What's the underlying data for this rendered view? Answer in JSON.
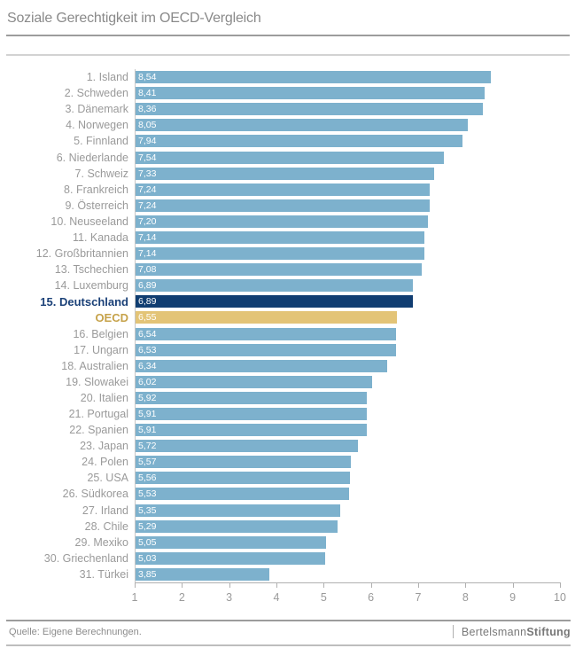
{
  "header": {
    "title": "Soziale Gerechtigkeit im OECD-Vergleich"
  },
  "chart_data": {
    "type": "bar",
    "orientation": "horizontal",
    "title": "Soziale Gerechtigkeit im OECD-Vergleich",
    "xlabel": "",
    "ylabel": "",
    "xlim": [
      1,
      10
    ],
    "x_ticks": [
      1,
      2,
      3,
      4,
      5,
      6,
      7,
      8,
      9,
      10
    ],
    "grid": false,
    "legend": "none",
    "value_labels_inside_bars": true,
    "rows": [
      {
        "label": "1. Island",
        "value": 8.54,
        "display": "8,54",
        "type": "default"
      },
      {
        "label": "2. Schweden",
        "value": 8.41,
        "display": "8,41",
        "type": "default"
      },
      {
        "label": "3. Dänemark",
        "value": 8.36,
        "display": "8,36",
        "type": "default"
      },
      {
        "label": "4. Norwegen",
        "value": 8.05,
        "display": "8,05",
        "type": "default"
      },
      {
        "label": "5. Finnland",
        "value": 7.94,
        "display": "7,94",
        "type": "default"
      },
      {
        "label": "6. Niederlande",
        "value": 7.54,
        "display": "7,54",
        "type": "default"
      },
      {
        "label": "7. Schweiz",
        "value": 7.33,
        "display": "7,33",
        "type": "default"
      },
      {
        "label": "8. Frankreich",
        "value": 7.24,
        "display": "7,24",
        "type": "default"
      },
      {
        "label": "9. Österreich",
        "value": 7.24,
        "display": "7,24",
        "type": "default"
      },
      {
        "label": "10. Neuseeland",
        "value": 7.2,
        "display": "7,20",
        "type": "default"
      },
      {
        "label": "11. Kanada",
        "value": 7.14,
        "display": "7,14",
        "type": "default"
      },
      {
        "label": "12. Großbritannien",
        "value": 7.14,
        "display": "7,14",
        "type": "default"
      },
      {
        "label": "13. Tschechien",
        "value": 7.08,
        "display": "7,08",
        "type": "default"
      },
      {
        "label": "14. Luxemburg",
        "value": 6.89,
        "display": "6,89",
        "type": "default"
      },
      {
        "label": "15. Deutschland",
        "value": 6.89,
        "display": "6,89",
        "type": "highlight-country"
      },
      {
        "label": "OECD",
        "value": 6.55,
        "display": "6,55",
        "type": "highlight-average"
      },
      {
        "label": "16. Belgien",
        "value": 6.54,
        "display": "6,54",
        "type": "default"
      },
      {
        "label": "17. Ungarn",
        "value": 6.53,
        "display": "6,53",
        "type": "default"
      },
      {
        "label": "18. Australien",
        "value": 6.34,
        "display": "6,34",
        "type": "default"
      },
      {
        "label": "19. Slowakei",
        "value": 6.02,
        "display": "6,02",
        "type": "default"
      },
      {
        "label": "20. Italien",
        "value": 5.92,
        "display": "5,92",
        "type": "default"
      },
      {
        "label": "21. Portugal",
        "value": 5.91,
        "display": "5,91",
        "type": "default"
      },
      {
        "label": "22. Spanien",
        "value": 5.91,
        "display": "5,91",
        "type": "default"
      },
      {
        "label": "23. Japan",
        "value": 5.72,
        "display": "5,72",
        "type": "default"
      },
      {
        "label": "24. Polen",
        "value": 5.57,
        "display": "5,57",
        "type": "default"
      },
      {
        "label": "25. USA",
        "value": 5.56,
        "display": "5,56",
        "type": "default"
      },
      {
        "label": "26. Südkorea",
        "value": 5.53,
        "display": "5,53",
        "type": "default"
      },
      {
        "label": "27. Irland",
        "value": 5.35,
        "display": "5,35",
        "type": "default"
      },
      {
        "label": "28. Chile",
        "value": 5.29,
        "display": "5,29",
        "type": "default"
      },
      {
        "label": "29. Mexiko",
        "value": 5.05,
        "display": "5,05",
        "type": "default"
      },
      {
        "label": "30. Griechenland",
        "value": 5.03,
        "display": "5,03",
        "type": "default"
      },
      {
        "label": "31. Türkei",
        "value": 3.85,
        "display": "3,85",
        "type": "default"
      }
    ],
    "colors": {
      "bar_default": "#7db1cd",
      "bar_highlight_country": "#103d71",
      "bar_highlight_average": "#e3c477",
      "label_default": "#9a9a9a",
      "label_highlight_country": "#1b4178",
      "label_highlight_average": "#c6a24a",
      "value_label": "#ffffff"
    }
  },
  "footer": {
    "source": "Quelle: Eigene Berechnungen.",
    "brand": {
      "name_regular": "Bertelsmann",
      "name_bold": "Stiftung"
    }
  }
}
